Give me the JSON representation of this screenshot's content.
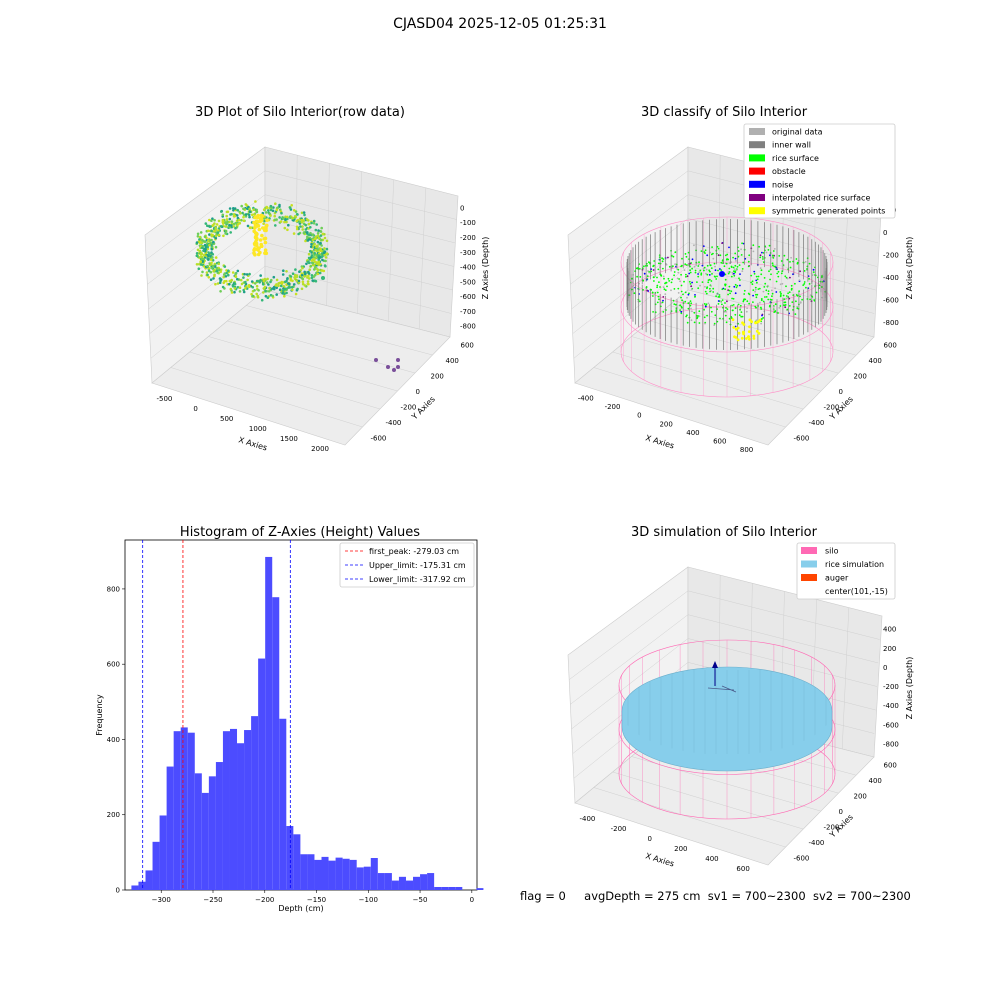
{
  "figure": {
    "suptitle": "CJASD04 2025-12-05 01:25:31",
    "status_line": {
      "flag": "flag = 0",
      "avg_depth": "avgDepth = 275 cm",
      "sv1": "sv1 = 700~2300",
      "sv2": "sv2 = 700~2300"
    }
  },
  "panels": {
    "raw": {
      "title": "3D Plot of Silo Interior(row data)",
      "xlabel": "X Axies",
      "ylabel": "Y Axies",
      "zlabel": "Z Axies (Depth)",
      "xticks": [
        "-500",
        "0",
        "500",
        "1000",
        "1500",
        "2000"
      ],
      "yticks": [
        "600",
        "400",
        "200",
        "0",
        "-200",
        "-400",
        "-600"
      ],
      "zticks": [
        "0",
        "-100",
        "-200",
        "-300",
        "-400",
        "-500",
        "-600",
        "-700",
        "-800"
      ]
    },
    "classify": {
      "title": "3D classify of Silo Interior",
      "xlabel": "X Axies",
      "ylabel": "Y Axies",
      "zlabel": "Z Axies (Depth)",
      "xticks": [
        "-400",
        "-200",
        "0",
        "200",
        "400",
        "600",
        "800"
      ],
      "yticks": [
        "600",
        "400",
        "200",
        "0",
        "-200",
        "-400",
        "-600"
      ],
      "zticks": [
        "200",
        "0",
        "-200",
        "-400",
        "-600",
        "-800"
      ],
      "legend": [
        {
          "label": "original data",
          "color": "#b0b0b0"
        },
        {
          "label": "inner wall",
          "color": "#808080"
        },
        {
          "label": "rice surface",
          "color": "#00ff00"
        },
        {
          "label": "obstacle",
          "color": "#ff0000"
        },
        {
          "label": "noise",
          "color": "#0000ff"
        },
        {
          "label": "interpolated rice surface",
          "color": "#800080"
        },
        {
          "label": "symmetric generated points",
          "color": "#ffff00"
        }
      ]
    },
    "simulation": {
      "title": "3D simulation of Silo Interior",
      "xlabel": "X Axies",
      "ylabel": "Y Axies",
      "zlabel": "Z Axies (Depth)",
      "xticks": [
        "-400",
        "-200",
        "0",
        "200",
        "400",
        "600"
      ],
      "yticks": [
        "600",
        "400",
        "200",
        "0",
        "-200",
        "-400",
        "-600"
      ],
      "zticks": [
        "400",
        "200",
        "0",
        "-200",
        "-400",
        "-600",
        "-800"
      ],
      "legend": [
        {
          "label": "silo",
          "color": "#ff69b4"
        },
        {
          "label": "rice simulation",
          "color": "#87ceeb"
        },
        {
          "label": "auger",
          "color": "#ff4500"
        },
        {
          "label": "center(101,-15)",
          "color": ""
        }
      ]
    }
  },
  "chart_data": {
    "type": "bar",
    "title": "Histogram of Z-Axies (Height) Values",
    "xlabel": "Depth (cm)",
    "ylabel": "Frequency",
    "xlim": [
      -335,
      5
    ],
    "ylim": [
      0,
      930
    ],
    "xticks": [
      -300,
      -250,
      -200,
      -150,
      -100,
      -50,
      0
    ],
    "yticks": [
      0,
      200,
      400,
      600,
      800
    ],
    "bin_width": 6.8,
    "bin_start": -328.8,
    "bar_color": "#4c4cff",
    "values": [
      12,
      22,
      52,
      128,
      198,
      328,
      422,
      432,
      418,
      310,
      258,
      302,
      340,
      422,
      428,
      390,
      425,
      462,
      615,
      885,
      778,
      455,
      170,
      148,
      95,
      95,
      80,
      88,
      78,
      86,
      83,
      80,
      60,
      62,
      85,
      45,
      45,
      25,
      35,
      25,
      35,
      42,
      45,
      8,
      8,
      8,
      8,
      0,
      0,
      5,
      0
    ],
    "vlines": [
      {
        "label": "first_peak: -279.03 cm",
        "x": -279.03,
        "color": "#ff0000"
      },
      {
        "label": "Upper_limit: -175.31 cm",
        "x": -175.31,
        "color": "#0000ff"
      },
      {
        "label": "Lower_limit: -317.92 cm",
        "x": -317.92,
        "color": "#0000ff"
      }
    ],
    "legend_position": "upper right"
  }
}
